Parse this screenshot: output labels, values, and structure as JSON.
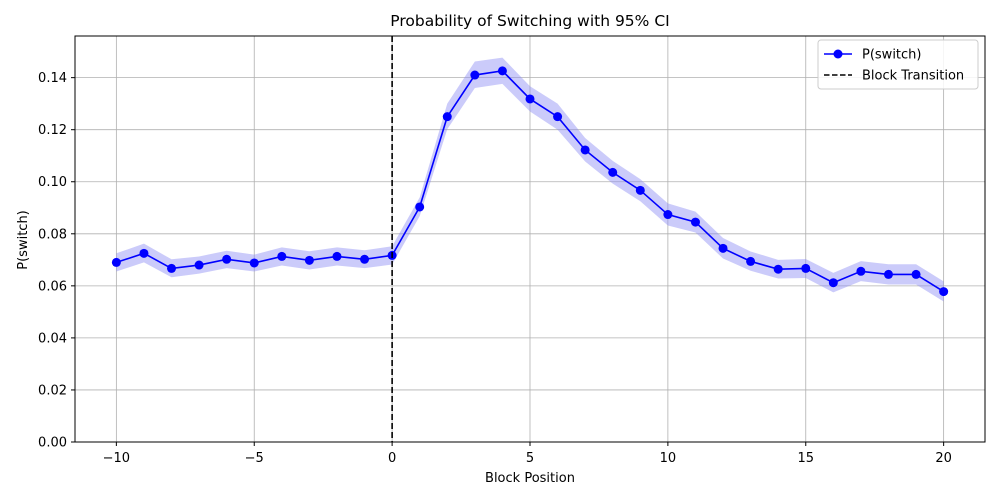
{
  "chart_data": {
    "type": "line",
    "title": "Probability of Switching with 95% CI",
    "xlabel": "Block Position",
    "ylabel": "P(switch)",
    "xlim": [
      -11.5,
      21.5
    ],
    "ylim": [
      0.0,
      0.156
    ],
    "xticks": [
      -10,
      -5,
      0,
      5,
      10,
      15,
      20
    ],
    "xtick_labels": [
      "−10",
      "−5",
      "0",
      "5",
      "10",
      "15",
      "20"
    ],
    "yticks": [
      0.0,
      0.02,
      0.04,
      0.06,
      0.08,
      0.1,
      0.12,
      0.14
    ],
    "ytick_labels": [
      "0.00",
      "0.02",
      "0.04",
      "0.06",
      "0.08",
      "0.10",
      "0.12",
      "0.14"
    ],
    "grid": true,
    "legend_position": "top-right",
    "series": [
      {
        "name": "P(switch)",
        "color": "#0000ff",
        "ci_color": "#8c8cf5",
        "x": [
          -10,
          -9,
          -8,
          -7,
          -6,
          -5,
          -4,
          -3,
          -2,
          -1,
          0,
          1,
          2,
          3,
          4,
          5,
          6,
          7,
          8,
          9,
          10,
          11,
          12,
          13,
          14,
          15,
          16,
          17,
          18,
          19,
          20
        ],
        "y": [
          0.069,
          0.0725,
          0.0667,
          0.068,
          0.0702,
          0.0688,
          0.0713,
          0.0698,
          0.0713,
          0.0702,
          0.0717,
          0.0903,
          0.125,
          0.141,
          0.1426,
          0.1318,
          0.125,
          0.1122,
          0.1036,
          0.0967,
          0.0874,
          0.0845,
          0.0744,
          0.0694,
          0.0664,
          0.0667,
          0.0612,
          0.0656,
          0.0644,
          0.0644,
          0.0578
        ],
        "ci_lower": [
          0.0655,
          0.069,
          0.0633,
          0.0647,
          0.0668,
          0.0655,
          0.0678,
          0.0663,
          0.0678,
          0.0668,
          0.0682,
          0.0868,
          0.1202,
          0.136,
          0.1376,
          0.127,
          0.12,
          0.1078,
          0.0993,
          0.0925,
          0.0832,
          0.0805,
          0.0705,
          0.0658,
          0.0628,
          0.063,
          0.0575,
          0.0618,
          0.0605,
          0.0605,
          0.054
        ],
        "ci_upper": [
          0.0725,
          0.0762,
          0.0702,
          0.0713,
          0.0735,
          0.072,
          0.0748,
          0.0733,
          0.0748,
          0.0737,
          0.0752,
          0.094,
          0.13,
          0.1462,
          0.1477,
          0.1367,
          0.13,
          0.1168,
          0.108,
          0.101,
          0.0917,
          0.0885,
          0.0784,
          0.0732,
          0.07,
          0.0703,
          0.065,
          0.0695,
          0.0683,
          0.0683,
          0.0617
        ]
      }
    ],
    "vline": {
      "name": "Block Transition",
      "x": 0,
      "color": "#000000",
      "style": "dashed"
    }
  }
}
